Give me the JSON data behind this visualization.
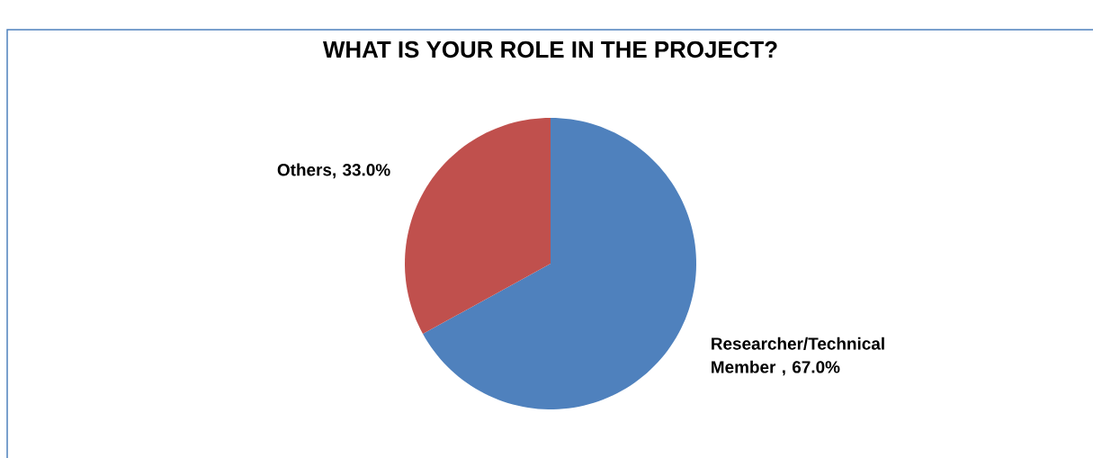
{
  "chart_data": {
    "type": "pie",
    "title": "WHAT IS YOUR ROLE IN THE PROJECT?",
    "categories": [
      "Researcher/Technical Member ",
      "Others"
    ],
    "values": [
      67.0,
      33.0
    ],
    "colors": [
      "#4f81bd",
      "#c0504d"
    ],
    "value_labels": [
      ", 67.0%",
      ", 33.0%"
    ]
  }
}
